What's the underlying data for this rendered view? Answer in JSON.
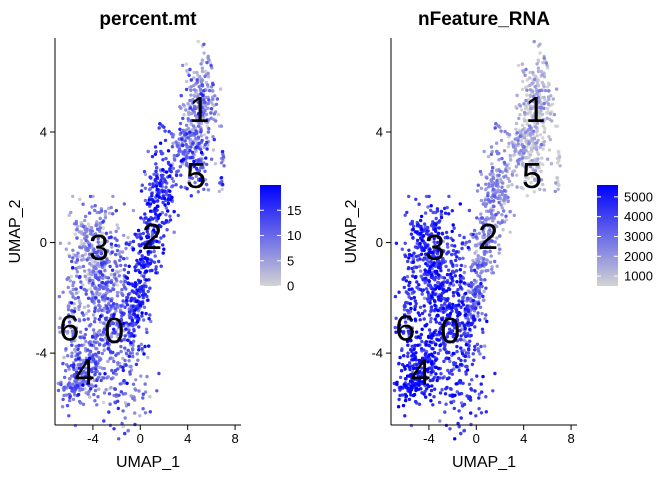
{
  "chart_data": [
    {
      "type": "scatter",
      "title": "percent.mt",
      "xlabel": "UMAP_1",
      "ylabel": "UMAP_2",
      "xlim": [
        -7.2,
        8.5
      ],
      "ylim": [
        -6.6,
        7.4
      ],
      "xticks": [
        -4,
        0,
        4,
        8
      ],
      "yticks": [
        -4,
        0,
        4
      ],
      "grid": false,
      "legend": {
        "position": "right",
        "type": "colorbar",
        "range": [
          0,
          20
        ],
        "ticks": [
          0,
          5,
          10,
          15
        ],
        "colors": [
          "#d3d3d3",
          "#0000ff"
        ]
      },
      "color_variable": "percent.mt",
      "clusters": [
        {
          "label": "0",
          "x": -2.2,
          "y": -3.2
        },
        {
          "label": "1",
          "x": 5.0,
          "y": 4.8
        },
        {
          "label": "2",
          "x": 1.0,
          "y": 0.2
        },
        {
          "label": "3",
          "x": -3.5,
          "y": -0.2
        },
        {
          "label": "4",
          "x": -4.7,
          "y": -4.7
        },
        {
          "label": "5",
          "x": 4.7,
          "y": 2.4
        },
        {
          "label": "6",
          "x": -6.0,
          "y": -3.1
        }
      ]
    },
    {
      "type": "scatter",
      "title": "nFeature_RNA",
      "xlabel": "UMAP_1",
      "ylabel": "UMAP_2",
      "xlim": [
        -7.2,
        8.5
      ],
      "ylim": [
        -6.6,
        7.4
      ],
      "xticks": [
        -4,
        0,
        4,
        8
      ],
      "yticks": [
        -4,
        0,
        4
      ],
      "grid": false,
      "legend": {
        "position": "right",
        "type": "colorbar",
        "range": [
          500,
          5600
        ],
        "ticks": [
          1000,
          2000,
          3000,
          4000,
          5000
        ],
        "colors": [
          "#d3d3d3",
          "#0000ff"
        ]
      },
      "color_variable": "nFeature_RNA",
      "clusters": [
        {
          "label": "0",
          "x": -2.2,
          "y": -3.2
        },
        {
          "label": "1",
          "x": 5.0,
          "y": 4.8
        },
        {
          "label": "2",
          "x": 1.0,
          "y": 0.2
        },
        {
          "label": "3",
          "x": -3.5,
          "y": -0.2
        },
        {
          "label": "4",
          "x": -4.7,
          "y": -4.7
        },
        {
          "label": "5",
          "x": 4.7,
          "y": 2.4
        },
        {
          "label": "6",
          "x": -6.0,
          "y": -3.1
        }
      ]
    }
  ]
}
